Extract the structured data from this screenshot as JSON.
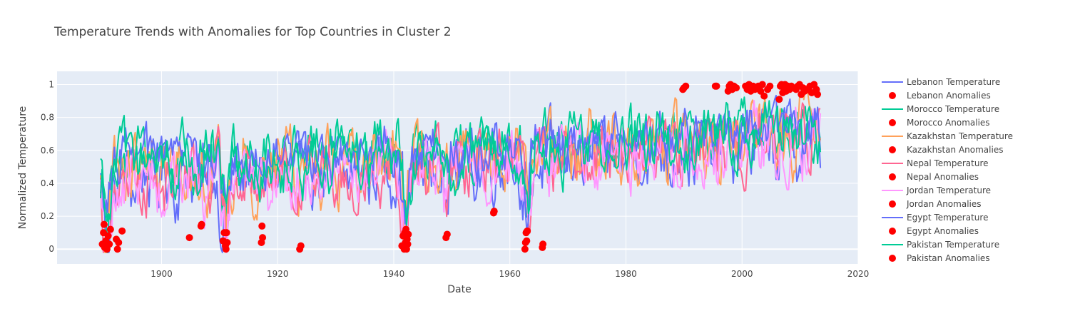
{
  "chart_data": {
    "type": "line",
    "title": "Temperature Trends with Anomalies for Top Countries in Cluster 2",
    "xlabel": "Date",
    "ylabel": "Normalized Temperature",
    "xlim": [
      1882,
      2020
    ],
    "ylim": [
      -0.09,
      1.08
    ],
    "x_ticks": [
      "1900",
      "1920",
      "1940",
      "1960",
      "1980",
      "2000",
      "2020"
    ],
    "y_ticks": [
      "0",
      "0.2",
      "0.4",
      "0.6",
      "0.8",
      "1"
    ],
    "x_range_data": [
      1889.5,
      2013.5
    ],
    "plot_bg": "#e5ecf6",
    "grid": true,
    "legend_position": "right",
    "anomaly_color": "#ff0000",
    "series": [
      {
        "name": "Lebanon Temperature",
        "color": "#636efa",
        "mean_start": 0.42,
        "mean_end": 0.66,
        "amp": 0.16
      },
      {
        "name": "Morocco Temperature",
        "color": "#00cc96",
        "mean_start": 0.55,
        "mean_end": 0.74,
        "amp": 0.13
      },
      {
        "name": "Kazakhstan Temperature",
        "color": "#ffa15a",
        "mean_start": 0.47,
        "mean_end": 0.7,
        "amp": 0.17
      },
      {
        "name": "Nepal Temperature",
        "color": "#ff6692",
        "mean_start": 0.43,
        "mean_end": 0.68,
        "amp": 0.15
      },
      {
        "name": "Jordan Temperature",
        "color": "#ff97ff",
        "mean_start": 0.4,
        "mean_end": 0.66,
        "amp": 0.16
      },
      {
        "name": "Egypt Temperature",
        "color": "#636efa",
        "mean_start": 0.55,
        "mean_end": 0.74,
        "amp": 0.12
      },
      {
        "name": "Pakistan Temperature",
        "color": "#00cc96",
        "mean_start": 0.5,
        "mean_end": 0.7,
        "amp": 0.14
      }
    ],
    "anomaly_series": [
      {
        "name": "Lebanon Anomalies"
      },
      {
        "name": "Morocco Anomalies"
      },
      {
        "name": "Kazakhstan Anomalies"
      },
      {
        "name": "Nepal Anomalies"
      },
      {
        "name": "Jordan Anomalies"
      },
      {
        "name": "Egypt Anomalies"
      },
      {
        "name": "Pakistan Anomalies"
      }
    ],
    "anomalies": [
      [
        1889.8,
        0.03
      ],
      [
        1890.0,
        0.1
      ],
      [
        1890.2,
        0.01
      ],
      [
        1890.4,
        0.05
      ],
      [
        1890.6,
        0.0
      ],
      [
        1890.8,
        0.08
      ],
      [
        1891.0,
        0.03
      ],
      [
        1891.2,
        0.12
      ],
      [
        1890.1,
        0.15
      ],
      [
        1890.5,
        0.02
      ],
      [
        1892.2,
        0.06
      ],
      [
        1892.4,
        0.0
      ],
      [
        1892.6,
        0.04
      ],
      [
        1893.2,
        0.11
      ],
      [
        1904.8,
        0.07
      ],
      [
        1906.8,
        0.14
      ],
      [
        1906.9,
        0.15
      ],
      [
        1910.6,
        0.05
      ],
      [
        1910.8,
        0.1
      ],
      [
        1911.0,
        0.02
      ],
      [
        1911.1,
        0.0
      ],
      [
        1911.2,
        0.1
      ],
      [
        1911.3,
        0.04
      ],
      [
        1917.2,
        0.04
      ],
      [
        1917.4,
        0.07
      ],
      [
        1917.3,
        0.14
      ],
      [
        1923.8,
        0.0
      ],
      [
        1924.0,
        0.02
      ],
      [
        1941.4,
        0.02
      ],
      [
        1941.6,
        0.08
      ],
      [
        1941.8,
        0.0
      ],
      [
        1941.9,
        0.1
      ],
      [
        1942.0,
        0.04
      ],
      [
        1942.1,
        0.12
      ],
      [
        1942.2,
        0.0
      ],
      [
        1942.3,
        0.06
      ],
      [
        1942.4,
        0.03
      ],
      [
        1942.5,
        0.09
      ],
      [
        1949.0,
        0.07
      ],
      [
        1949.2,
        0.09
      ],
      [
        1957.2,
        0.22
      ],
      [
        1957.3,
        0.23
      ],
      [
        1962.6,
        0.0
      ],
      [
        1962.7,
        0.04
      ],
      [
        1962.8,
        0.1
      ],
      [
        1962.9,
        0.05
      ],
      [
        1963.0,
        0.11
      ],
      [
        1965.6,
        0.01
      ],
      [
        1965.7,
        0.03
      ],
      [
        1989.8,
        0.97
      ],
      [
        1990.0,
        0.98
      ],
      [
        1990.3,
        0.99
      ],
      [
        1995.4,
        0.99
      ],
      [
        1995.6,
        0.99
      ],
      [
        1997.6,
        0.96
      ],
      [
        1997.8,
        0.99
      ],
      [
        1998.0,
        1.0
      ],
      [
        1998.3,
        0.97
      ],
      [
        1998.6,
        0.99
      ],
      [
        1999.0,
        0.98
      ],
      [
        2000.6,
        0.99
      ],
      [
        2000.9,
        0.97
      ],
      [
        2001.2,
        1.0
      ],
      [
        2001.5,
        0.96
      ],
      [
        2001.9,
        0.99
      ],
      [
        2002.2,
        0.97
      ],
      [
        2002.8,
        0.99
      ],
      [
        2003.2,
        0.96
      ],
      [
        2003.5,
        1.0
      ],
      [
        2003.8,
        0.93
      ],
      [
        2004.4,
        0.97
      ],
      [
        2004.8,
        0.99
      ],
      [
        2006.4,
        0.91
      ],
      [
        2006.6,
        0.99
      ],
      [
        2006.8,
        1.0
      ],
      [
        2007.0,
        0.95
      ],
      [
        2007.2,
        0.98
      ],
      [
        2007.4,
        1.0
      ],
      [
        2007.6,
        0.96
      ],
      [
        2007.9,
        0.99
      ],
      [
        2008.2,
        0.97
      ],
      [
        2008.5,
        0.99
      ],
      [
        2009.3,
        0.97
      ],
      [
        2009.6,
        0.99
      ],
      [
        2009.9,
        1.0
      ],
      [
        2010.2,
        0.94
      ],
      [
        2010.5,
        0.98
      ],
      [
        2010.8,
        0.96
      ],
      [
        2011.3,
        0.97
      ],
      [
        2011.7,
        0.99
      ],
      [
        2012.0,
        0.95
      ],
      [
        2012.4,
        1.0
      ],
      [
        2012.8,
        0.97
      ],
      [
        2013.0,
        0.94
      ]
    ]
  }
}
